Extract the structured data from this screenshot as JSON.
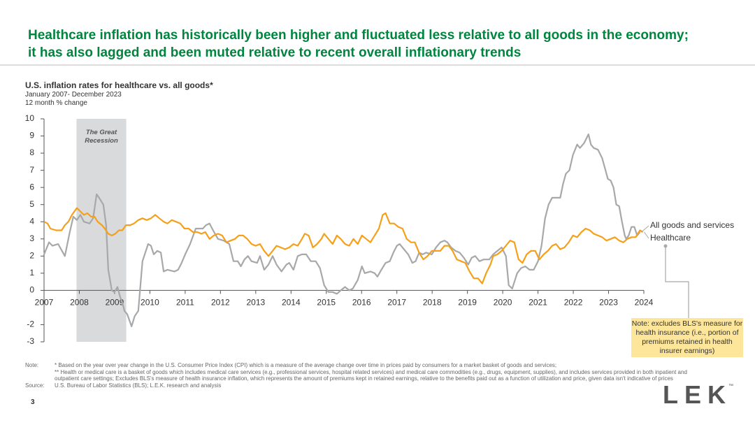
{
  "header": {
    "title": [
      "Healthcare inflation has historically been higher and fluctuated less relative to all goods in the economy;",
      "it has also lagged and been muted relative to recent overall inflationary trends"
    ]
  },
  "chart_data": {
    "type": "line",
    "title": "U.S. inflation rates for healthcare vs. all goods*",
    "subtitle": [
      "January 2007- December 2023",
      "12 month % change"
    ],
    "xlim": [
      2007,
      2024
    ],
    "xticks": [
      2007,
      2008,
      2009,
      2010,
      2011,
      2012,
      2013,
      2014,
      2015,
      2016,
      2017,
      2018,
      2019,
      2020,
      2021,
      2022,
      2023,
      2024
    ],
    "ylim": [
      -3,
      10
    ],
    "yticks": [
      -3,
      -2,
      0,
      1,
      2,
      3,
      4,
      5,
      6,
      7,
      8,
      9,
      10
    ],
    "recession": {
      "text": "The Great Recession",
      "x": [
        2007.92,
        2009.33
      ],
      "color": "#d9dadc"
    },
    "series": [
      {
        "name": "All goods and services",
        "color": "#a7a8aa",
        "x": [
          2007.0,
          2007.14,
          2007.24,
          2007.4,
          2007.59,
          2007.73,
          2007.83,
          2007.93,
          2008.03,
          2008.13,
          2008.29,
          2008.39,
          2008.49,
          2008.56,
          2008.68,
          2008.76,
          2008.82,
          2008.92,
          2009.0,
          2009.08,
          2009.16,
          2009.22,
          2009.28,
          2009.36,
          2009.48,
          2009.57,
          2009.67,
          2009.79,
          2009.95,
          2010.03,
          2010.11,
          2010.21,
          2010.31,
          2010.39,
          2010.5,
          2010.7,
          2010.8,
          2010.9,
          2011.0,
          2011.14,
          2011.3,
          2011.5,
          2011.59,
          2011.69,
          2011.79,
          2011.93,
          2012.09,
          2012.25,
          2012.37,
          2012.49,
          2012.58,
          2012.68,
          2012.78,
          2012.88,
          2013.04,
          2013.12,
          2013.24,
          2013.36,
          2013.48,
          2013.59,
          2013.73,
          2013.87,
          2013.95,
          2014.07,
          2014.19,
          2014.31,
          2014.43,
          2014.56,
          2014.7,
          2014.82,
          2014.94,
          2015.06,
          2015.18,
          2015.3,
          2015.41,
          2015.53,
          2015.65,
          2015.75,
          2015.89,
          2016.01,
          2016.09,
          2016.25,
          2016.37,
          2016.45,
          2016.56,
          2016.68,
          2016.8,
          2016.9,
          2017.0,
          2017.08,
          2017.2,
          2017.32,
          2017.44,
          2017.53,
          2017.63,
          2017.73,
          2017.83,
          2017.99,
          2018.11,
          2018.23,
          2018.35,
          2018.43,
          2018.54,
          2018.66,
          2018.78,
          2018.9,
          2019.02,
          2019.12,
          2019.22,
          2019.34,
          2019.46,
          2019.62,
          2019.73,
          2019.85,
          2019.97,
          2020.09,
          2020.17,
          2020.27,
          2020.41,
          2020.52,
          2020.64,
          2020.76,
          2020.88,
          2021.0,
          2021.1,
          2021.2,
          2021.3,
          2021.4,
          2021.51,
          2021.63,
          2021.71,
          2021.79,
          2021.89,
          2021.99,
          2022.11,
          2022.19,
          2022.31,
          2022.43,
          2022.5,
          2022.58,
          2022.7,
          2022.82,
          2022.9,
          2022.98,
          2023.06,
          2023.14,
          2023.22,
          2023.3,
          2023.38,
          2023.46,
          2023.5,
          2023.57,
          2023.65,
          2023.73,
          2023.81,
          2023.89
        ],
        "values": [
          2.1,
          2.8,
          2.6,
          2.7,
          2.0,
          3.4,
          4.3,
          4.1,
          4.4,
          4.0,
          3.9,
          4.2,
          5.6,
          5.4,
          5.0,
          3.8,
          1.2,
          0.0,
          -0.1,
          0.2,
          -0.4,
          -0.7,
          -1.2,
          -1.4,
          -2.1,
          -1.5,
          -1.2,
          1.7,
          2.7,
          2.6,
          2.1,
          2.3,
          2.2,
          1.1,
          1.2,
          1.1,
          1.2,
          1.6,
          2.1,
          2.7,
          3.6,
          3.6,
          3.8,
          3.9,
          3.5,
          3.0,
          2.9,
          2.7,
          1.7,
          1.7,
          1.4,
          1.8,
          2.0,
          1.7,
          1.6,
          2.0,
          1.2,
          1.5,
          2.0,
          1.5,
          1.1,
          1.5,
          1.6,
          1.2,
          2.0,
          2.1,
          2.1,
          1.7,
          1.7,
          1.3,
          0.3,
          -0.1,
          -0.1,
          -0.2,
          0.0,
          0.2,
          0.0,
          0.1,
          0.6,
          1.4,
          1.0,
          1.1,
          1.0,
          0.8,
          1.2,
          1.6,
          1.7,
          2.2,
          2.6,
          2.7,
          2.4,
          2.1,
          1.6,
          1.7,
          2.2,
          2.1,
          2.2,
          2.1,
          2.5,
          2.8,
          2.9,
          2.8,
          2.5,
          2.3,
          2.2,
          1.9,
          1.5,
          1.9,
          2.0,
          1.7,
          1.8,
          1.8,
          2.1,
          2.3,
          2.5,
          2.0,
          0.3,
          0.1,
          1.0,
          1.3,
          1.4,
          1.2,
          1.2,
          1.7,
          2.6,
          4.2,
          5.0,
          5.4,
          5.4,
          5.4,
          6.2,
          6.8,
          7.0,
          7.9,
          8.5,
          8.3,
          8.6,
          9.1,
          8.5,
          8.3,
          8.2,
          7.7,
          7.1,
          6.5,
          6.4,
          6.0,
          5.0,
          4.9,
          4.0,
          3.2,
          3.0,
          3.2,
          3.7,
          3.7,
          3.2,
          3.4
        ]
      },
      {
        "name": "Healthcare",
        "color": "#f5a01a",
        "x": [
          2007.0,
          2007.1,
          2007.18,
          2007.34,
          2007.5,
          2007.59,
          2007.69,
          2007.79,
          2007.93,
          2008.03,
          2008.13,
          2008.23,
          2008.33,
          2008.43,
          2008.52,
          2008.64,
          2008.72,
          2008.82,
          2008.92,
          2009.02,
          2009.12,
          2009.22,
          2009.32,
          2009.44,
          2009.55,
          2009.67,
          2009.79,
          2009.91,
          2010.03,
          2010.15,
          2010.27,
          2010.39,
          2010.5,
          2010.62,
          2010.74,
          2010.86,
          2010.98,
          2011.1,
          2011.22,
          2011.34,
          2011.46,
          2011.57,
          2011.69,
          2011.81,
          2011.93,
          2012.05,
          2012.17,
          2012.29,
          2012.41,
          2012.52,
          2012.64,
          2012.76,
          2012.88,
          2013.0,
          2013.12,
          2013.24,
          2013.36,
          2013.48,
          2013.59,
          2013.71,
          2013.83,
          2013.95,
          2014.07,
          2014.19,
          2014.31,
          2014.39,
          2014.5,
          2014.62,
          2014.74,
          2014.86,
          2014.94,
          2015.06,
          2015.18,
          2015.3,
          2015.41,
          2015.53,
          2015.65,
          2015.77,
          2015.89,
          2016.01,
          2016.13,
          2016.25,
          2016.37,
          2016.49,
          2016.6,
          2016.68,
          2016.8,
          2016.92,
          2017.04,
          2017.16,
          2017.28,
          2017.4,
          2017.51,
          2017.63,
          2017.75,
          2017.87,
          2017.99,
          2018.11,
          2018.23,
          2018.35,
          2018.47,
          2018.58,
          2018.7,
          2018.82,
          2018.94,
          2019.06,
          2019.18,
          2019.3,
          2019.42,
          2019.53,
          2019.65,
          2019.73,
          2019.85,
          2019.97,
          2020.09,
          2020.21,
          2020.33,
          2020.45,
          2020.56,
          2020.68,
          2020.8,
          2020.92,
          2021.04,
          2021.16,
          2021.28,
          2021.4,
          2021.51,
          2021.63,
          2021.75,
          2021.87,
          2021.99,
          2022.11,
          2022.23,
          2022.35,
          2022.47,
          2022.58,
          2022.7,
          2022.82,
          2022.94,
          2023.06,
          2023.18,
          2023.3,
          2023.42,
          2023.53,
          2023.65,
          2023.77,
          2023.89,
          2023.97
        ],
        "values": [
          4.0,
          3.9,
          3.6,
          3.5,
          3.5,
          3.8,
          4.0,
          4.4,
          4.8,
          4.6,
          4.4,
          4.5,
          4.3,
          4.3,
          4.0,
          3.8,
          3.6,
          3.3,
          3.2,
          3.3,
          3.5,
          3.5,
          3.8,
          3.8,
          3.9,
          4.1,
          4.2,
          4.1,
          4.2,
          4.4,
          4.2,
          4.0,
          3.9,
          4.1,
          4.0,
          3.9,
          3.6,
          3.6,
          3.4,
          3.4,
          3.3,
          3.4,
          3.0,
          3.2,
          3.3,
          3.2,
          2.8,
          2.9,
          3.0,
          3.2,
          3.2,
          3.0,
          2.7,
          2.6,
          2.7,
          2.3,
          2.0,
          2.3,
          2.6,
          2.5,
          2.4,
          2.5,
          2.7,
          2.6,
          3.0,
          3.3,
          3.2,
          2.5,
          2.7,
          3.0,
          3.3,
          3.0,
          2.7,
          3.2,
          3.0,
          2.7,
          2.6,
          3.0,
          2.7,
          3.2,
          3.0,
          2.8,
          3.2,
          3.6,
          4.4,
          4.5,
          3.9,
          3.9,
          3.7,
          3.6,
          3.0,
          2.8,
          2.8,
          2.2,
          1.8,
          2.0,
          2.3,
          2.3,
          2.3,
          2.6,
          2.6,
          2.3,
          1.8,
          1.7,
          1.6,
          1.1,
          0.7,
          0.7,
          0.4,
          1.0,
          1.5,
          2.0,
          2.1,
          2.3,
          2.6,
          2.9,
          2.8,
          1.8,
          1.6,
          2.1,
          2.3,
          2.3,
          1.8,
          2.1,
          2.3,
          2.6,
          2.7,
          2.4,
          2.5,
          2.8,
          3.2,
          3.1,
          3.4,
          3.6,
          3.5,
          3.3,
          3.2,
          3.1,
          2.9,
          3.0,
          3.1,
          2.9,
          2.8,
          3.0,
          3.1,
          3.1,
          3.5,
          3.4
        ]
      }
    ],
    "note": "Note: excludes BLS's measure for health insurance (i.e., portion of premiums retained in health insurer earnings)"
  },
  "notes": {
    "label": "Note:",
    "items": [
      "* Based on the year over year change in the U.S. Consumer Price Index (CPI) which is a measure of the average change over time in prices paid by consumers for a market basket of goods and services;",
      "** Health or medical care is a basket of goods which includes medical care services (e.g., professional services, hospital related services) and medical care commodities (e.g., drugs, equipment, supplies), and includes services provided in both inpatient and outpatient care settings; Excludes BLS's measure of health insurance inflation, which represents the amount of premiums kept in retained earnings, relative to the benefits paid out as a function of utilization and price, given data isn't indicative of prices"
    ],
    "source_label": "Source:",
    "source": "U.S. Bureau of Labor Statistics (BLS); L.E.K. research and analysis"
  },
  "page_number": 3,
  "logo": "LEK",
  "trademark": "™"
}
